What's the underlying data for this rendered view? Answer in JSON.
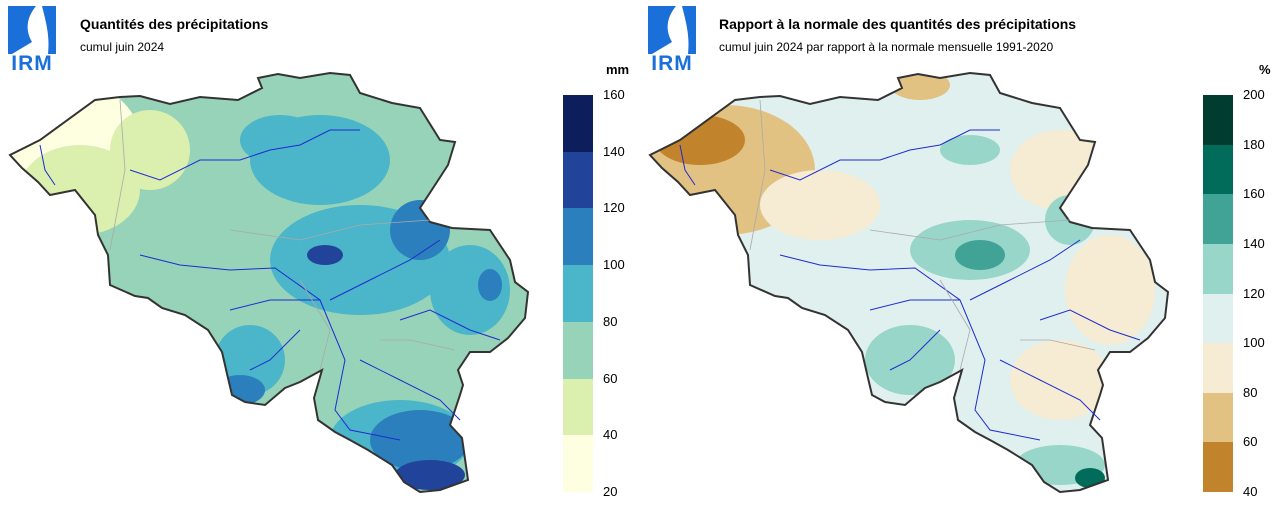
{
  "logo": {
    "text": "IRM",
    "color": "#1a6fd8"
  },
  "panels": [
    {
      "title": "Quantités des précipitations",
      "subtitle": "cumul juin 2024",
      "unit": "mm",
      "legend_ticks": [
        "160",
        "140",
        "120",
        "100",
        "80",
        "60",
        "40",
        "20"
      ],
      "legend_colors": [
        "#0c1f5c",
        "#22439a",
        "#2b7fbd",
        "#4bb5c9",
        "#96d3b8",
        "#dbefaf",
        "#fefee0"
      ]
    },
    {
      "title": "Rapport à la normale des quantités des précipitations",
      "subtitle": "cumul juin 2024 par rapport à la normale mensuelle 1991-2020",
      "unit": "%",
      "legend_ticks": [
        "200",
        "180",
        "160",
        "140",
        "120",
        "100",
        "80",
        "60",
        "40"
      ],
      "legend_colors": [
        "#003c30",
        "#016c59",
        "#41a396",
        "#98d6c9",
        "#e0f0ef",
        "#f6ebd3",
        "#e2c282",
        "#c2832d"
      ]
    }
  ]
}
